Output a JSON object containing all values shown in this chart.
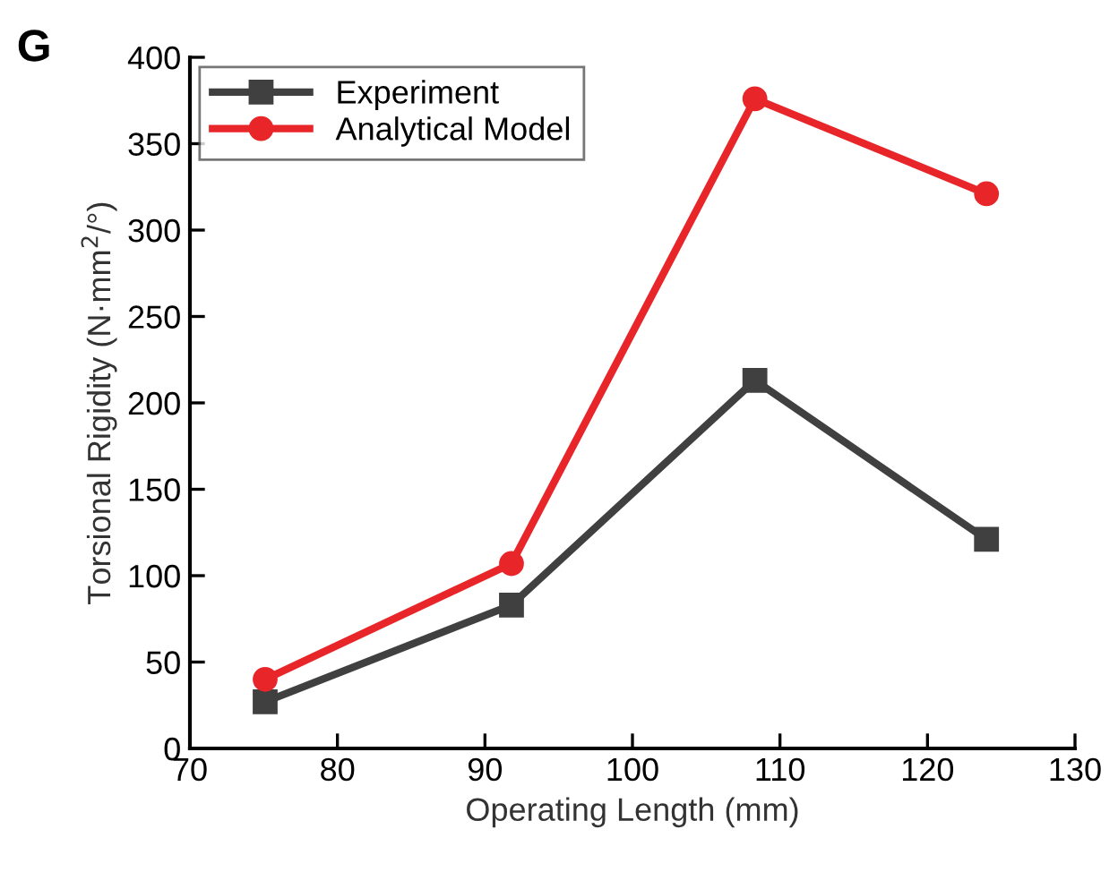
{
  "chart_data": {
    "type": "line",
    "xlabel": "Operating Length (mm)",
    "ylabel": "Torsional Rigidity (N·mm$^{2}$/°)",
    "annotations": [
      "G"
    ],
    "x": [
      75.1,
      91.8,
      108.3,
      124.0
    ],
    "series": [
      {
        "name": "Experiment",
        "color": "#404040",
        "values": [
          27,
          83,
          213,
          121
        ],
        "marker": "square"
      },
      {
        "name": "Analytical Model",
        "color": "#e8262a",
        "values": [
          40,
          107,
          376,
          321
        ],
        "marker": "circle"
      }
    ],
    "xlim": [
      70,
      130
    ],
    "xticks": [
      70,
      80,
      90,
      100,
      110,
      120,
      130
    ],
    "ylim": [
      0,
      400
    ],
    "yticks": [
      0,
      50,
      100,
      150,
      200,
      250,
      300,
      350,
      400
    ],
    "grid": false,
    "legend": "top left",
    "line_style": "solid"
  }
}
